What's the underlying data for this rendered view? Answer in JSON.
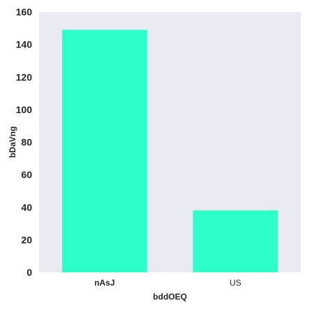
{
  "chart_data": {
    "type": "bar",
    "title": "",
    "xlabel": "bddOEQ",
    "ylabel": "bDaVng",
    "categories": [
      "nAsJ",
      "US"
    ],
    "category_label_bold": [
      true,
      false
    ],
    "values": [
      149,
      38
    ],
    "ylim": [
      0,
      160
    ],
    "yticks": [
      0,
      20,
      40,
      60,
      80,
      100,
      120,
      140,
      160
    ],
    "grid": false,
    "legend": "none",
    "colors": {
      "bar": "#2effc8",
      "plot_background": "#eaeaf2",
      "text": "#262626"
    }
  }
}
